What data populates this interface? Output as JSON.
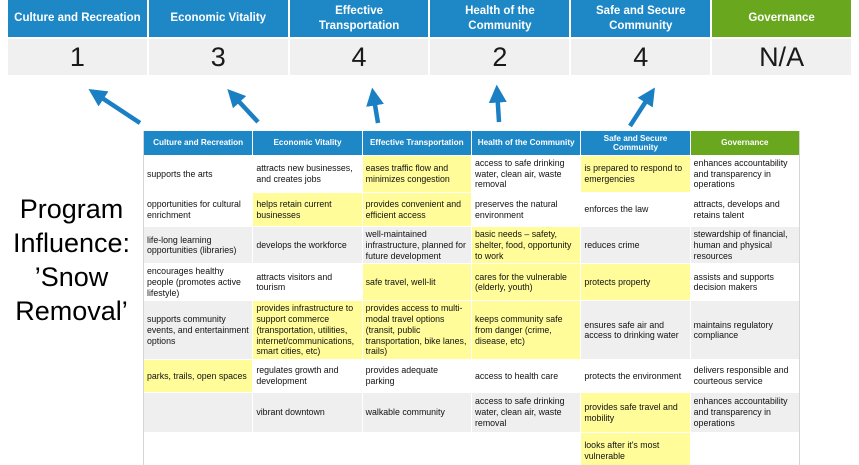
{
  "colors": {
    "blue": "#1E87C6",
    "green": "#69A81E",
    "highlight": "#FFFC99",
    "band_bg": "#F0F0F0",
    "shaded_row": "#EFEFEF",
    "arrow": "#1B7FC4"
  },
  "title": {
    "lines": [
      "Program",
      "Influence:",
      "’Snow",
      "Removal’"
    ]
  },
  "band": {
    "columns": [
      {
        "label": "Culture and Recreation",
        "score": "1"
      },
      {
        "label": "Economic Vitality",
        "score": "3"
      },
      {
        "label": "Effective Transportation",
        "score": "4"
      },
      {
        "label": "Health of the Community",
        "score": "2"
      },
      {
        "label": "Safe and Secure Community",
        "score": "4"
      },
      {
        "label": "Governance",
        "score": "N/A"
      }
    ]
  },
  "arrows": {
    "count": 5,
    "color": "#1B7FC4",
    "meaning": "links matrix columns to influence scores"
  },
  "matrix": {
    "headers": [
      "Culture and Recreation",
      "Economic Vitality",
      "Effective Transportation",
      "Health of the Community",
      "Safe and Secure Community",
      "Governance"
    ],
    "rows": [
      {
        "shaded": false,
        "cells": [
          {
            "t": "supports the arts",
            "hl": false
          },
          {
            "t": "attracts new businesses, and creates jobs",
            "hl": false
          },
          {
            "t": "eases traffic flow and minimizes congestion",
            "hl": true
          },
          {
            "t": "access to safe drinking water, clean air, waste removal",
            "hl": false
          },
          {
            "t": "is prepared to respond to emergencies",
            "hl": true
          },
          {
            "t": "enhances accountability and transparency in operations",
            "hl": false
          }
        ]
      },
      {
        "shaded": false,
        "cells": [
          {
            "t": "opportunities for cultural enrichment",
            "hl": false
          },
          {
            "t": "helps retain current businesses",
            "hl": true
          },
          {
            "t": "provides convenient and efficient access",
            "hl": true
          },
          {
            "t": "preserves the natural environment",
            "hl": false
          },
          {
            "t": "enforces the law",
            "hl": false
          },
          {
            "t": "attracts, develops and retains talent",
            "hl": false
          }
        ]
      },
      {
        "shaded": true,
        "cells": [
          {
            "t": "life-long learning opportunities (libraries)",
            "hl": false
          },
          {
            "t": "develops the workforce",
            "hl": false
          },
          {
            "t": "well-maintained infrastructure, planned for future development",
            "hl": false
          },
          {
            "t": "basic needs – safety, shelter, food, opportunity to work",
            "hl": true
          },
          {
            "t": "reduces crime",
            "hl": false
          },
          {
            "t": "stewardship of financial, human and physical resources",
            "hl": false
          }
        ]
      },
      {
        "shaded": false,
        "cells": [
          {
            "t": "encourages healthy people (promotes active lifestyle)",
            "hl": false
          },
          {
            "t": "attracts visitors and tourism",
            "hl": false
          },
          {
            "t": "safe travel, well-lit",
            "hl": true
          },
          {
            "t": "cares for the vulnerable (elderly, youth)",
            "hl": true
          },
          {
            "t": "protects property",
            "hl": true
          },
          {
            "t": "assists and supports decision makers",
            "hl": false
          }
        ]
      },
      {
        "shaded": true,
        "cells": [
          {
            "t": "supports community events, and entertainment options",
            "hl": false
          },
          {
            "t": "provides infrastructure to support commerce (transportation, utilities, internet/communications, smart cities, etc)",
            "hl": true
          },
          {
            "t": "provides access to multi-modal travel options (transit, public transportation, bike lanes, trails)",
            "hl": true
          },
          {
            "t": "keeps community safe from danger (crime, disease, etc)",
            "hl": true
          },
          {
            "t": "ensures safe air and access to drinking water",
            "hl": false
          },
          {
            "t": "maintains regulatory compliance",
            "hl": false
          }
        ]
      },
      {
        "shaded": false,
        "cells": [
          {
            "t": "parks, trails, open spaces",
            "hl": true
          },
          {
            "t": "regulates growth and development",
            "hl": false
          },
          {
            "t": "provides adequate parking",
            "hl": false
          },
          {
            "t": "access to health care",
            "hl": false
          },
          {
            "t": "protects the environment",
            "hl": false
          },
          {
            "t": "delivers responsible and courteous service",
            "hl": false
          }
        ]
      },
      {
        "shaded": true,
        "cells": [
          {
            "t": "",
            "hl": false
          },
          {
            "t": "vibrant downtown",
            "hl": false
          },
          {
            "t": "walkable community",
            "hl": false
          },
          {
            "t": "access to safe drinking water, clean air, waste removal",
            "hl": false
          },
          {
            "t": "provides safe travel and mobility",
            "hl": true
          },
          {
            "t": "enhances accountability and transparency in operations",
            "hl": false
          }
        ]
      },
      {
        "shaded": false,
        "cells": [
          {
            "t": "",
            "hl": false
          },
          {
            "t": "",
            "hl": false
          },
          {
            "t": "",
            "hl": false
          },
          {
            "t": "",
            "hl": false
          },
          {
            "t": "looks after it's most vulnerable",
            "hl": true
          },
          {
            "t": "",
            "hl": false
          }
        ]
      }
    ]
  }
}
